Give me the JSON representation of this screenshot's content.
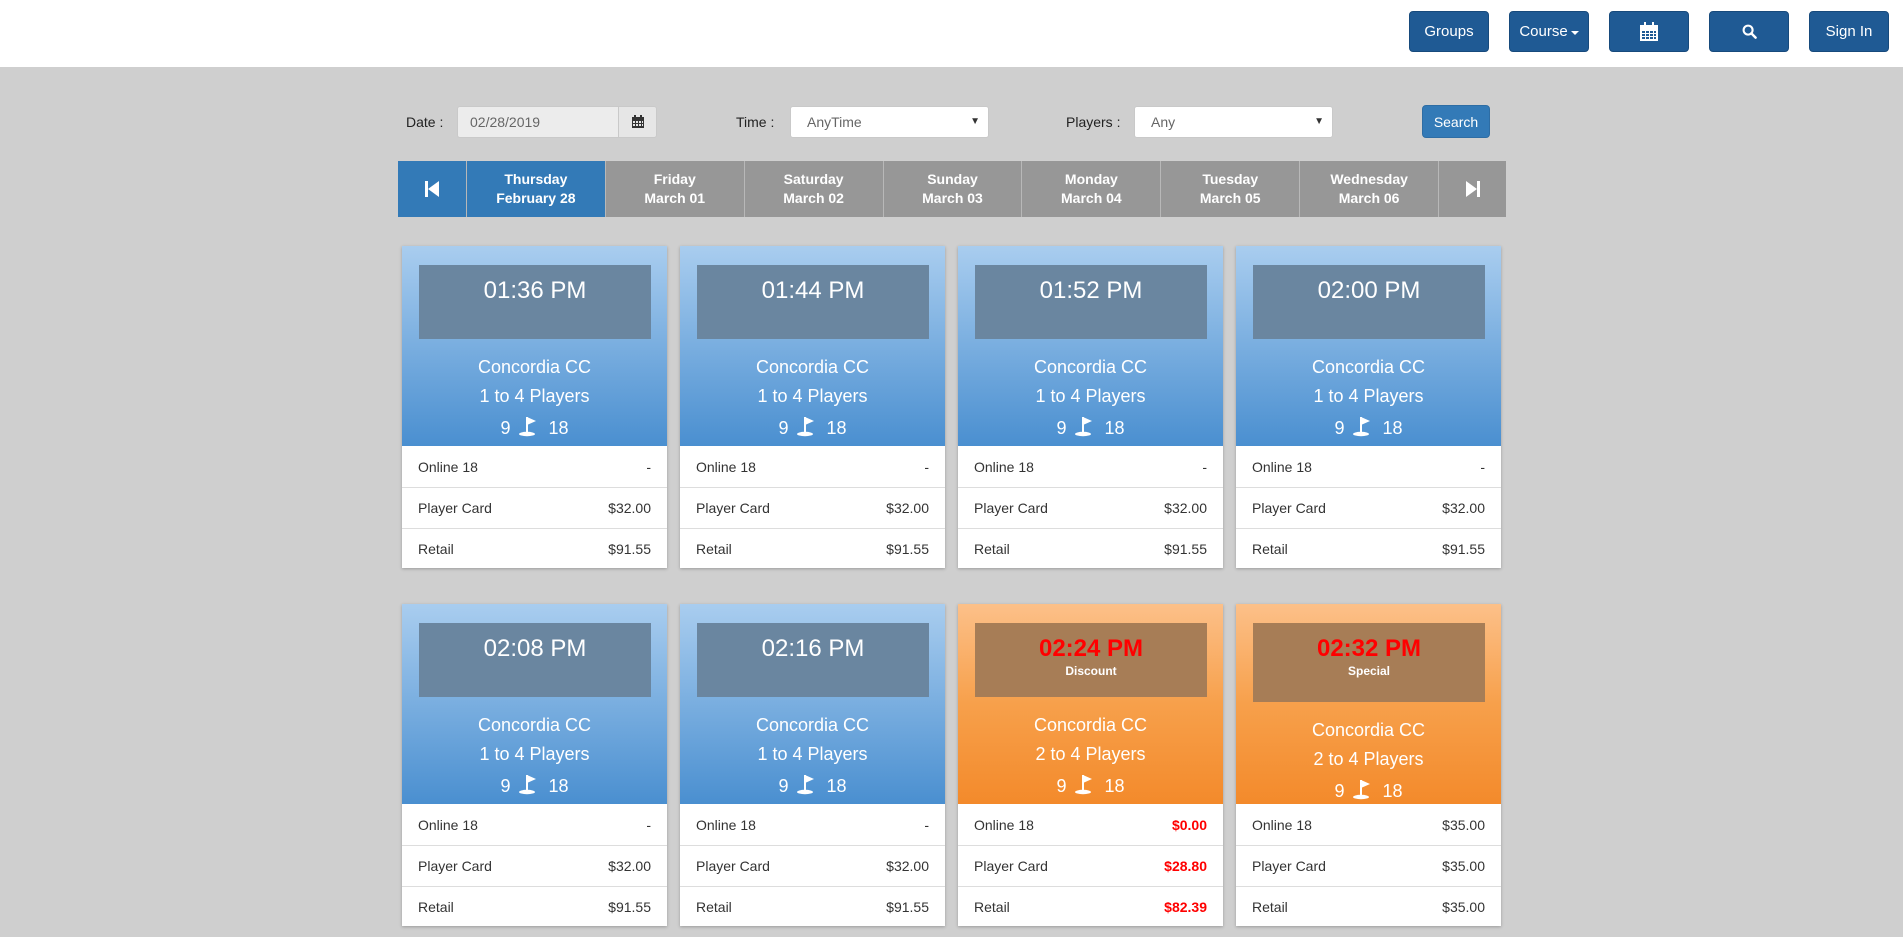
{
  "header": {
    "groups_label": "Groups",
    "course_label": "Course",
    "signin_label": "Sign In"
  },
  "filters": {
    "date_label": "Date :",
    "date_value": "02/28/2019",
    "time_label": "Time :",
    "time_value": "AnyTime",
    "players_label": "Players :",
    "players_value": "Any",
    "search_label": "Search"
  },
  "days": [
    {
      "weekday": "Thursday",
      "date": "February 28",
      "active": true
    },
    {
      "weekday": "Friday",
      "date": "March 01",
      "active": false
    },
    {
      "weekday": "Saturday",
      "date": "March 02",
      "active": false
    },
    {
      "weekday": "Sunday",
      "date": "March 03",
      "active": false
    },
    {
      "weekday": "Monday",
      "date": "March 04",
      "active": false
    },
    {
      "weekday": "Tuesday",
      "date": "March 05",
      "active": false
    },
    {
      "weekday": "Wednesday",
      "date": "March 06",
      "active": false
    }
  ],
  "colors": {
    "accent": "#337ab7",
    "nav_dark": "#1f5a94",
    "special_red": "#ff0000"
  },
  "tee_times": [
    {
      "time": "01:36 PM",
      "tag": "",
      "course": "Concordia CC",
      "players": "1 to 4 Players",
      "holes_a": "9",
      "holes_b": "18",
      "theme": "blue",
      "rates": [
        {
          "name": "Online 18",
          "price": "-",
          "red": false
        },
        {
          "name": "Player Card",
          "price": "$32.00",
          "red": false
        },
        {
          "name": "Retail",
          "price": "$91.55",
          "red": false
        }
      ]
    },
    {
      "time": "01:44 PM",
      "tag": "",
      "course": "Concordia CC",
      "players": "1 to 4 Players",
      "holes_a": "9",
      "holes_b": "18",
      "theme": "blue",
      "rates": [
        {
          "name": "Online 18",
          "price": "-",
          "red": false
        },
        {
          "name": "Player Card",
          "price": "$32.00",
          "red": false
        },
        {
          "name": "Retail",
          "price": "$91.55",
          "red": false
        }
      ]
    },
    {
      "time": "01:52 PM",
      "tag": "",
      "course": "Concordia CC",
      "players": "1 to 4 Players",
      "holes_a": "9",
      "holes_b": "18",
      "theme": "blue",
      "rates": [
        {
          "name": "Online 18",
          "price": "-",
          "red": false
        },
        {
          "name": "Player Card",
          "price": "$32.00",
          "red": false
        },
        {
          "name": "Retail",
          "price": "$91.55",
          "red": false
        }
      ]
    },
    {
      "time": "02:00 PM",
      "tag": "",
      "course": "Concordia CC",
      "players": "1 to 4 Players",
      "holes_a": "9",
      "holes_b": "18",
      "theme": "blue",
      "rates": [
        {
          "name": "Online 18",
          "price": "-",
          "red": false
        },
        {
          "name": "Player Card",
          "price": "$32.00",
          "red": false
        },
        {
          "name": "Retail",
          "price": "$91.55",
          "red": false
        }
      ]
    },
    {
      "time": "02:08 PM",
      "tag": "",
      "course": "Concordia CC",
      "players": "1 to 4 Players",
      "holes_a": "9",
      "holes_b": "18",
      "theme": "blue",
      "rates": [
        {
          "name": "Online 18",
          "price": "-",
          "red": false
        },
        {
          "name": "Player Card",
          "price": "$32.00",
          "red": false
        },
        {
          "name": "Retail",
          "price": "$91.55",
          "red": false
        }
      ]
    },
    {
      "time": "02:16 PM",
      "tag": "",
      "course": "Concordia CC",
      "players": "1 to 4 Players",
      "holes_a": "9",
      "holes_b": "18",
      "theme": "blue",
      "rates": [
        {
          "name": "Online 18",
          "price": "-",
          "red": false
        },
        {
          "name": "Player Card",
          "price": "$32.00",
          "red": false
        },
        {
          "name": "Retail",
          "price": "$91.55",
          "red": false
        }
      ]
    },
    {
      "time": "02:24 PM",
      "tag": "Discount",
      "course": "Concordia CC",
      "players": "2 to 4 Players",
      "holes_a": "9",
      "holes_b": "18",
      "theme": "orange",
      "rates": [
        {
          "name": "Online 18",
          "price": "$0.00",
          "red": true
        },
        {
          "name": "Player Card",
          "price": "$28.80",
          "red": true
        },
        {
          "name": "Retail",
          "price": "$82.39",
          "red": true
        }
      ]
    },
    {
      "time": "02:32 PM",
      "tag": "Special",
      "course": "Concordia CC",
      "players": "2 to 4 Players",
      "holes_a": "9",
      "holes_b": "18",
      "theme": "orange",
      "rates": [
        {
          "name": "Online 18",
          "price": "$35.00",
          "red": false
        },
        {
          "name": "Player Card",
          "price": "$35.00",
          "red": false
        },
        {
          "name": "Retail",
          "price": "$35.00",
          "red": false
        }
      ]
    }
  ]
}
